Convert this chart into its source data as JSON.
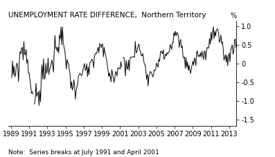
{
  "title": "UNEMPLOYMENT RATE DIFFERENCE,  Northern Territory",
  "ylabel": "%",
  "note": "Note:  Series breaks at July 1991 and April 2001",
  "ylim": [
    -1.65,
    1.15
  ],
  "yticks": [
    -1.5,
    -1.0,
    -0.5,
    0.0,
    0.5,
    1.0
  ],
  "ytick_labels": [
    "-1.5",
    "-1.0",
    "-0.5",
    "0",
    "0.5",
    "1.0"
  ],
  "xlim": [
    1988.7,
    2013.8
  ],
  "xtick_years": [
    1989,
    1991,
    1993,
    1995,
    1997,
    1999,
    2001,
    2003,
    2005,
    2007,
    2009,
    2011,
    2013
  ],
  "line_color": "#000000",
  "line_width": 0.7,
  "bg_color": "#ffffff",
  "title_fontsize": 7.5,
  "tick_fontsize": 7.0,
  "note_fontsize": 6.5
}
